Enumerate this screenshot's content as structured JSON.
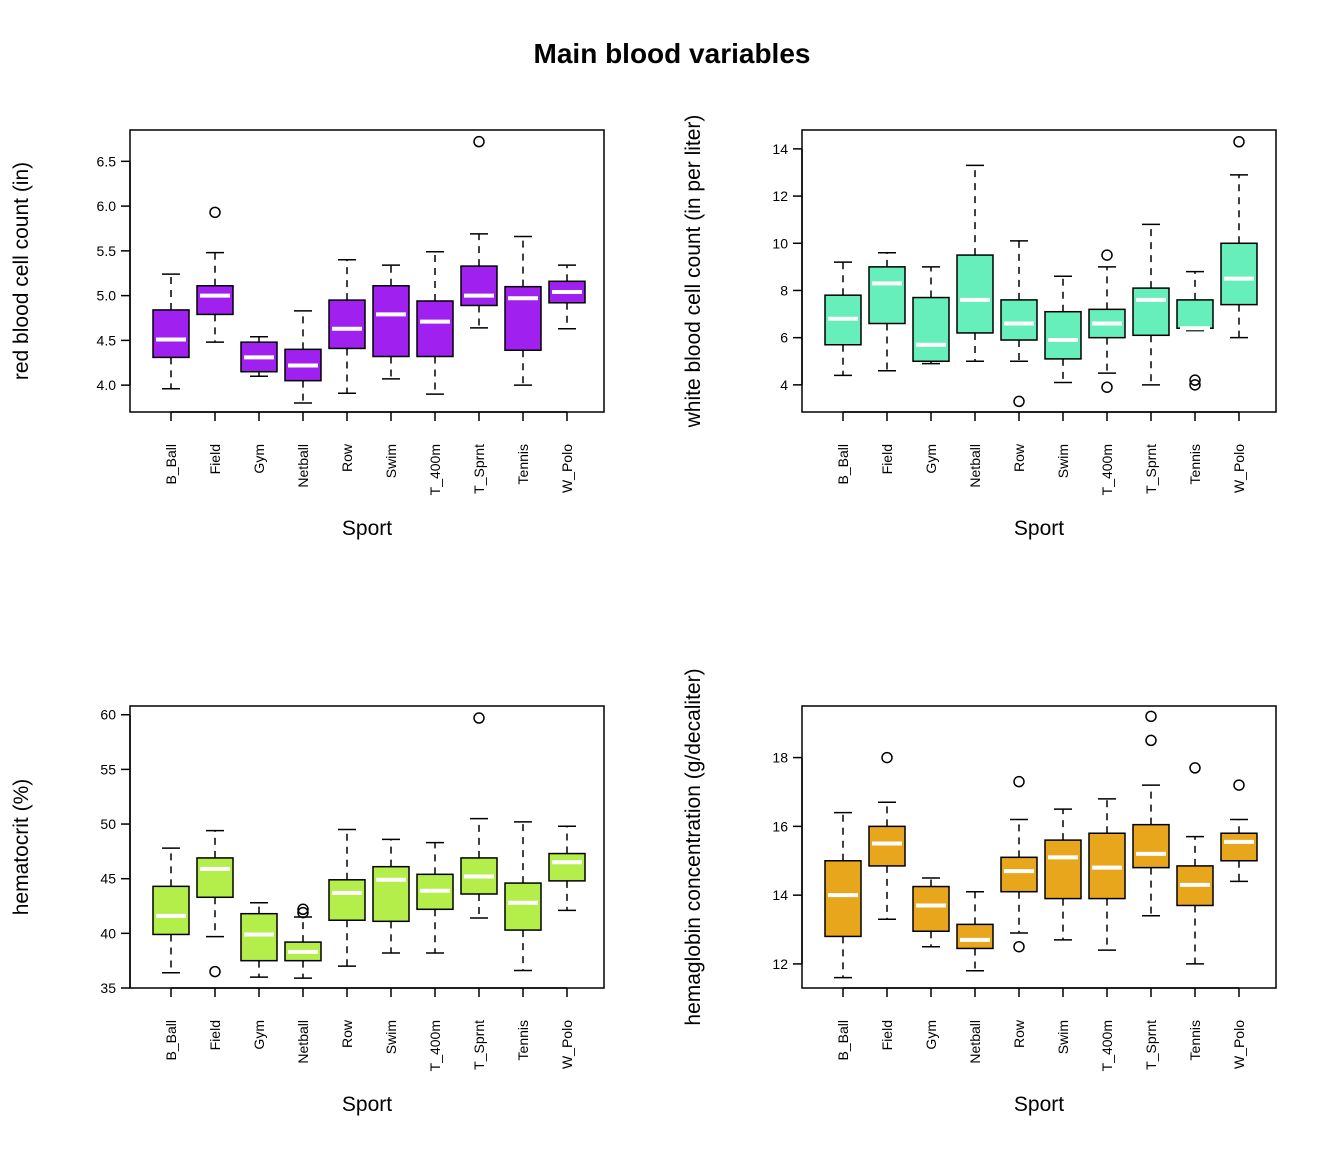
{
  "title": "Main blood variables",
  "chart_data": [
    {
      "type": "box",
      "xlabel": "Sport",
      "ylabel": "red blood cell count (in)",
      "color": "#A020F0",
      "ylim": [
        3.7,
        6.85
      ],
      "yticks": [
        4.0,
        4.5,
        5.0,
        5.5,
        6.0,
        6.5
      ],
      "ytick_labels": [
        "4.0",
        "4.5",
        "5.0",
        "5.5",
        "6.0",
        "6.5"
      ],
      "categories": [
        "B_Ball",
        "Field",
        "Gym",
        "Netball",
        "Row",
        "Swim",
        "T_400m",
        "T_Sprnt",
        "Tennis",
        "W_Polo"
      ],
      "boxes": [
        {
          "min": 3.96,
          "q1": 4.31,
          "median": 4.51,
          "q3": 4.84,
          "max": 5.24,
          "outliers": []
        },
        {
          "min": 4.48,
          "q1": 4.79,
          "median": 5.0,
          "q3": 5.11,
          "max": 5.48,
          "outliers": [
            5.93
          ]
        },
        {
          "min": 4.1,
          "q1": 4.15,
          "median": 4.31,
          "q3": 4.48,
          "max": 4.54,
          "outliers": []
        },
        {
          "min": 3.8,
          "q1": 4.05,
          "median": 4.22,
          "q3": 4.4,
          "max": 4.83,
          "outliers": []
        },
        {
          "min": 3.91,
          "q1": 4.41,
          "median": 4.63,
          "q3": 4.95,
          "max": 5.4,
          "outliers": []
        },
        {
          "min": 4.07,
          "q1": 4.32,
          "median": 4.79,
          "q3": 5.11,
          "max": 5.34,
          "outliers": []
        },
        {
          "min": 3.9,
          "q1": 4.32,
          "median": 4.71,
          "q3": 4.94,
          "max": 5.49,
          "outliers": []
        },
        {
          "min": 4.64,
          "q1": 4.89,
          "median": 5.0,
          "q3": 5.33,
          "max": 5.69,
          "outliers": [
            6.72
          ]
        },
        {
          "min": 4.0,
          "q1": 4.39,
          "median": 4.97,
          "q3": 5.1,
          "max": 5.66,
          "outliers": []
        },
        {
          "min": 4.63,
          "q1": 4.92,
          "median": 5.04,
          "q3": 5.16,
          "max": 5.34,
          "outliers": []
        }
      ]
    },
    {
      "type": "box",
      "xlabel": "Sport",
      "ylabel": "white blood cell count (in per liter)",
      "color": "#66EEBB",
      "ylim": [
        2.85,
        14.8
      ],
      "yticks": [
        4,
        6,
        8,
        10,
        12,
        14
      ],
      "ytick_labels": [
        "4",
        "6",
        "8",
        "10",
        "12",
        "14"
      ],
      "categories": [
        "B_Ball",
        "Field",
        "Gym",
        "Netball",
        "Row",
        "Swim",
        "T_400m",
        "T_Sprnt",
        "Tennis",
        "W_Polo"
      ],
      "boxes": [
        {
          "min": 4.4,
          "q1": 5.7,
          "median": 6.8,
          "q3": 7.8,
          "max": 9.2,
          "outliers": []
        },
        {
          "min": 4.6,
          "q1": 6.6,
          "median": 8.3,
          "q3": 9.0,
          "max": 9.6,
          "outliers": []
        },
        {
          "min": 4.9,
          "q1": 5.0,
          "median": 5.7,
          "q3": 7.7,
          "max": 9.0,
          "outliers": []
        },
        {
          "min": 5.0,
          "q1": 6.2,
          "median": 7.6,
          "q3": 9.5,
          "max": 13.3,
          "outliers": []
        },
        {
          "min": 5.0,
          "q1": 5.9,
          "median": 6.6,
          "q3": 7.6,
          "max": 10.1,
          "outliers": [
            3.3
          ]
        },
        {
          "min": 4.1,
          "q1": 5.1,
          "median": 5.9,
          "q3": 7.1,
          "max": 8.6,
          "outliers": []
        },
        {
          "min": 4.5,
          "q1": 6.0,
          "median": 6.6,
          "q3": 7.2,
          "max": 9.0,
          "outliers": [
            9.5,
            3.9
          ]
        },
        {
          "min": 4.0,
          "q1": 6.1,
          "median": 7.6,
          "q3": 8.1,
          "max": 10.8,
          "outliers": []
        },
        {
          "min": 6.3,
          "q1": 6.4,
          "median": 6.4,
          "q3": 7.6,
          "max": 8.8,
          "outliers": [
            4.2,
            4.0
          ]
        },
        {
          "min": 6.0,
          "q1": 7.4,
          "median": 8.5,
          "q3": 10.0,
          "max": 12.9,
          "outliers": [
            14.3
          ]
        }
      ]
    },
    {
      "type": "box",
      "xlabel": "Sport",
      "ylabel": "hematocrit (%)",
      "color": "#B3EE4A",
      "ylim": [
        35,
        60.8
      ],
      "yticks": [
        35,
        40,
        45,
        50,
        55,
        60
      ],
      "ytick_labels": [
        "35",
        "40",
        "45",
        "50",
        "55",
        "60"
      ],
      "categories": [
        "B_Ball",
        "Field",
        "Gym",
        "Netball",
        "Row",
        "Swim",
        "T_400m",
        "T_Sprnt",
        "Tennis",
        "W_Polo"
      ],
      "boxes": [
        {
          "min": 36.4,
          "q1": 39.9,
          "median": 41.6,
          "q3": 44.3,
          "max": 47.8,
          "outliers": []
        },
        {
          "min": 39.7,
          "q1": 43.3,
          "median": 45.9,
          "q3": 46.9,
          "max": 49.4,
          "outliers": [
            36.5
          ]
        },
        {
          "min": 36.0,
          "q1": 37.5,
          "median": 39.9,
          "q3": 41.8,
          "max": 42.8,
          "outliers": []
        },
        {
          "min": 35.9,
          "q1": 37.5,
          "median": 38.3,
          "q3": 39.2,
          "max": 41.5,
          "outliers": [
            42.2,
            41.9
          ]
        },
        {
          "min": 37.0,
          "q1": 41.2,
          "median": 43.7,
          "q3": 44.9,
          "max": 49.5,
          "outliers": []
        },
        {
          "min": 38.2,
          "q1": 41.1,
          "median": 44.9,
          "q3": 46.1,
          "max": 48.6,
          "outliers": []
        },
        {
          "min": 38.2,
          "q1": 42.2,
          "median": 43.9,
          "q3": 45.4,
          "max": 48.3,
          "outliers": []
        },
        {
          "min": 41.4,
          "q1": 43.6,
          "median": 45.2,
          "q3": 46.9,
          "max": 50.5,
          "outliers": [
            59.7
          ]
        },
        {
          "min": 36.6,
          "q1": 40.3,
          "median": 42.8,
          "q3": 44.6,
          "max": 50.2,
          "outliers": []
        },
        {
          "min": 42.1,
          "q1": 44.8,
          "median": 46.5,
          "q3": 47.3,
          "max": 49.8,
          "outliers": []
        }
      ]
    },
    {
      "type": "box",
      "xlabel": "Sport",
      "ylabel": "hemaglobin concentration (g/decaliter)",
      "color": "#E8A61C",
      "ylim": [
        11.3,
        19.5
      ],
      "yticks": [
        12,
        14,
        16,
        18
      ],
      "ytick_labels": [
        "12",
        "14",
        "16",
        "18"
      ],
      "categories": [
        "B_Ball",
        "Field",
        "Gym",
        "Netball",
        "Row",
        "Swim",
        "T_400m",
        "T_Sprnt",
        "Tennis",
        "W_Polo"
      ],
      "boxes": [
        {
          "min": 11.6,
          "q1": 12.8,
          "median": 14.0,
          "q3": 15.0,
          "max": 16.4,
          "outliers": []
        },
        {
          "min": 13.3,
          "q1": 14.85,
          "median": 15.5,
          "q3": 16.0,
          "max": 16.7,
          "outliers": [
            18.0
          ]
        },
        {
          "min": 12.5,
          "q1": 12.95,
          "median": 13.7,
          "q3": 14.25,
          "max": 14.5,
          "outliers": []
        },
        {
          "min": 11.8,
          "q1": 12.45,
          "median": 12.7,
          "q3": 13.15,
          "max": 14.1,
          "outliers": []
        },
        {
          "min": 12.9,
          "q1": 14.1,
          "median": 14.7,
          "q3": 15.1,
          "max": 16.2,
          "outliers": [
            17.3,
            12.5
          ]
        },
        {
          "min": 12.7,
          "q1": 13.9,
          "median": 15.1,
          "q3": 15.6,
          "max": 16.5,
          "outliers": []
        },
        {
          "min": 12.4,
          "q1": 13.9,
          "median": 14.8,
          "q3": 15.8,
          "max": 16.8,
          "outliers": []
        },
        {
          "min": 13.4,
          "q1": 14.8,
          "median": 15.2,
          "q3": 16.05,
          "max": 17.2,
          "outliers": [
            19.2,
            18.5
          ]
        },
        {
          "min": 12.0,
          "q1": 13.7,
          "median": 14.3,
          "q3": 14.85,
          "max": 15.7,
          "outliers": [
            17.7
          ]
        },
        {
          "min": 14.4,
          "q1": 15.0,
          "median": 15.55,
          "q3": 15.8,
          "max": 16.2,
          "outliers": [
            17.2
          ]
        }
      ]
    }
  ]
}
